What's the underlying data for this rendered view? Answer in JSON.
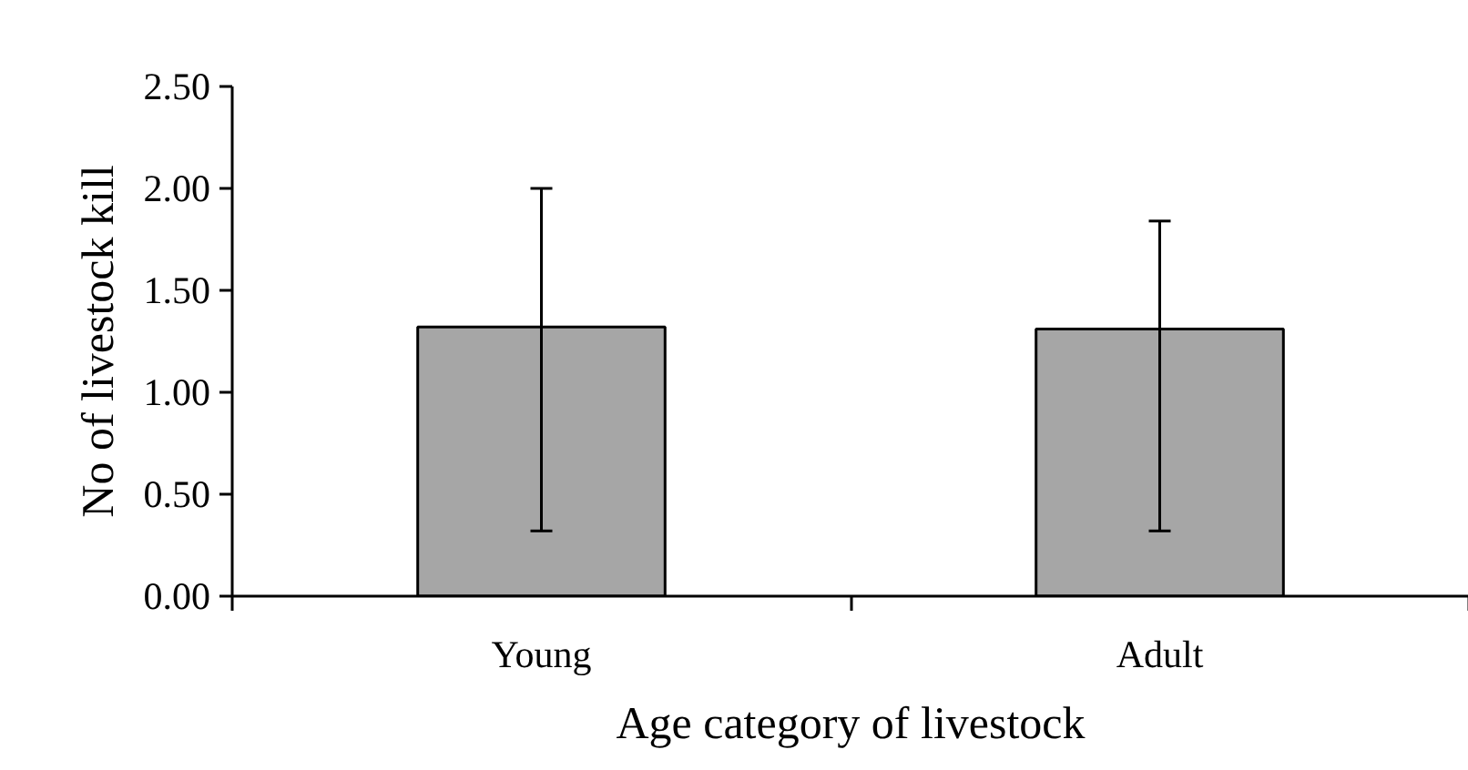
{
  "chart_data": {
    "type": "bar",
    "xlabel": "Age category of livestock",
    "ylabel": "No of livestock kill",
    "categories": [
      "Young",
      "Adult"
    ],
    "values": [
      1.32,
      1.31
    ],
    "color": "#a6a6a6",
    "errors": [
      [
        0.32,
        2.0
      ],
      [
        0.32,
        1.84
      ]
    ],
    "ylim": [
      0,
      2.5
    ],
    "yticks": [
      {
        "value": 0,
        "label": "0.00"
      },
      {
        "value": 0.5,
        "label": "0.50"
      },
      {
        "value": 1,
        "label": "1.00"
      },
      {
        "value": 1.5,
        "label": "1.50"
      },
      {
        "value": 2,
        "label": "2.00"
      },
      {
        "value": 2.5,
        "label": "2.50"
      }
    ],
    "grid": false
  }
}
